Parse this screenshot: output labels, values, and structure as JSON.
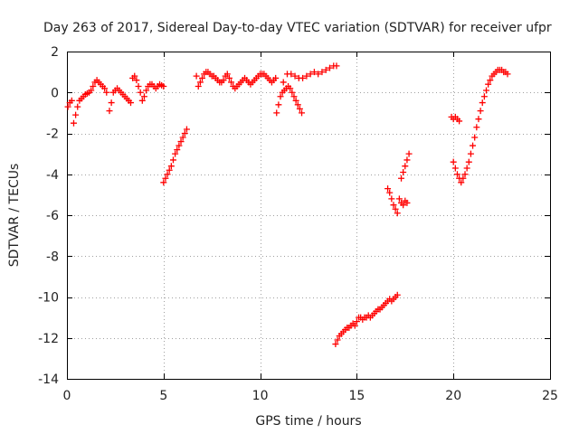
{
  "chart_data": {
    "type": "scatter",
    "title": "Day 263 of 2017, Sidereal Day-to-day VTEC variation (SDTVAR) for receiver ufpr",
    "xlabel": "GPS time / hours",
    "ylabel": "SDTVAR / TECUs",
    "xlim": [
      0,
      25
    ],
    "ylim": [
      -14,
      2
    ],
    "xticks": [
      0,
      5,
      10,
      15,
      20,
      25
    ],
    "yticks": [
      -14,
      -12,
      -10,
      -8,
      -6,
      -4,
      -2,
      0,
      2
    ],
    "grid": true,
    "marker": "+",
    "color": "#ff0000",
    "series": [
      {
        "values": [
          [
            0.05,
            -0.7
          ],
          [
            0.15,
            -0.5
          ],
          [
            0.25,
            -0.4
          ],
          [
            0.35,
            -1.5
          ],
          [
            0.45,
            -1.1
          ],
          [
            0.55,
            -0.7
          ],
          [
            0.65,
            -0.4
          ],
          [
            0.75,
            -0.3
          ],
          [
            0.85,
            -0.2
          ],
          [
            0.95,
            -0.1
          ],
          [
            1.05,
            -0.05
          ],
          [
            1.15,
            0.0
          ],
          [
            1.25,
            0.1
          ],
          [
            1.35,
            0.3
          ],
          [
            1.45,
            0.5
          ],
          [
            1.55,
            0.6
          ],
          [
            1.65,
            0.5
          ],
          [
            1.75,
            0.4
          ],
          [
            1.85,
            0.3
          ],
          [
            1.95,
            0.2
          ],
          [
            2.05,
            0.0
          ],
          [
            2.2,
            -0.9
          ],
          [
            2.3,
            -0.5
          ],
          [
            2.4,
            0.0
          ],
          [
            2.5,
            0.1
          ],
          [
            2.6,
            0.2
          ],
          [
            2.7,
            0.1
          ],
          [
            2.8,
            0.0
          ],
          [
            2.9,
            -0.1
          ],
          [
            3.0,
            -0.2
          ],
          [
            3.1,
            -0.3
          ],
          [
            3.2,
            -0.4
          ],
          [
            3.3,
            -0.5
          ],
          [
            3.4,
            0.7
          ],
          [
            3.5,
            0.8
          ],
          [
            3.6,
            0.6
          ],
          [
            3.7,
            0.3
          ],
          [
            3.8,
            0.0
          ],
          [
            3.9,
            -0.4
          ],
          [
            4.0,
            -0.2
          ],
          [
            4.1,
            0.1
          ],
          [
            4.2,
            0.3
          ],
          [
            4.3,
            0.4
          ],
          [
            4.4,
            0.4
          ],
          [
            4.5,
            0.3
          ],
          [
            4.6,
            0.2
          ],
          [
            4.7,
            0.3
          ],
          [
            4.8,
            0.4
          ],
          [
            4.9,
            0.35
          ],
          [
            5.0,
            0.3
          ]
        ]
      },
      {
        "values": [
          [
            5.0,
            -4.4
          ],
          [
            5.1,
            -4.2
          ],
          [
            5.2,
            -4.0
          ],
          [
            5.3,
            -3.8
          ],
          [
            5.4,
            -3.6
          ],
          [
            5.5,
            -3.3
          ],
          [
            5.6,
            -3.0
          ],
          [
            5.7,
            -2.8
          ],
          [
            5.8,
            -2.6
          ],
          [
            5.9,
            -2.4
          ],
          [
            6.0,
            -2.2
          ],
          [
            6.1,
            -2.0
          ],
          [
            6.2,
            -1.8
          ]
        ]
      },
      {
        "values": [
          [
            6.7,
            0.8
          ],
          [
            6.8,
            0.3
          ],
          [
            6.9,
            0.5
          ],
          [
            7.0,
            0.7
          ],
          [
            7.1,
            0.9
          ],
          [
            7.2,
            1.0
          ],
          [
            7.3,
            1.0
          ],
          [
            7.4,
            0.9
          ],
          [
            7.5,
            0.8
          ],
          [
            7.6,
            0.8
          ],
          [
            7.7,
            0.7
          ],
          [
            7.8,
            0.6
          ],
          [
            7.9,
            0.5
          ],
          [
            8.0,
            0.5
          ],
          [
            8.1,
            0.6
          ],
          [
            8.2,
            0.8
          ],
          [
            8.3,
            0.9
          ],
          [
            8.4,
            0.7
          ],
          [
            8.5,
            0.5
          ],
          [
            8.6,
            0.3
          ],
          [
            8.7,
            0.2
          ],
          [
            8.8,
            0.3
          ],
          [
            8.9,
            0.4
          ],
          [
            9.0,
            0.5
          ],
          [
            9.1,
            0.6
          ],
          [
            9.2,
            0.7
          ],
          [
            9.3,
            0.6
          ],
          [
            9.4,
            0.5
          ],
          [
            9.5,
            0.4
          ],
          [
            9.6,
            0.5
          ],
          [
            9.7,
            0.6
          ],
          [
            9.8,
            0.7
          ],
          [
            9.9,
            0.8
          ],
          [
            10.0,
            0.9
          ],
          [
            10.1,
            0.9
          ],
          [
            10.2,
            0.9
          ],
          [
            10.3,
            0.8
          ],
          [
            10.4,
            0.7
          ],
          [
            10.5,
            0.6
          ],
          [
            10.6,
            0.5
          ],
          [
            10.7,
            0.6
          ],
          [
            10.8,
            0.7
          ],
          [
            10.85,
            -1.0
          ],
          [
            10.95,
            -0.6
          ],
          [
            11.05,
            -0.2
          ],
          [
            11.15,
            0.0
          ],
          [
            11.25,
            0.1
          ],
          [
            11.35,
            0.2
          ],
          [
            11.45,
            0.3
          ],
          [
            11.55,
            0.2
          ],
          [
            11.65,
            0.0
          ],
          [
            11.75,
            -0.2
          ],
          [
            11.85,
            -0.4
          ],
          [
            11.95,
            -0.6
          ],
          [
            12.05,
            -0.8
          ],
          [
            12.15,
            -1.0
          ],
          [
            11.2,
            0.5
          ],
          [
            11.4,
            0.9
          ],
          [
            11.6,
            0.9
          ],
          [
            11.8,
            0.8
          ],
          [
            12.0,
            0.7
          ],
          [
            12.2,
            0.7
          ],
          [
            12.4,
            0.8
          ],
          [
            12.6,
            0.9
          ],
          [
            12.8,
            1.0
          ],
          [
            13.0,
            0.9
          ],
          [
            13.2,
            1.0
          ],
          [
            13.4,
            1.1
          ],
          [
            13.6,
            1.2
          ],
          [
            13.8,
            1.3
          ],
          [
            13.95,
            1.3
          ]
        ]
      },
      {
        "values": [
          [
            13.9,
            -12.3
          ],
          [
            14.0,
            -12.1
          ],
          [
            14.1,
            -11.9
          ],
          [
            14.2,
            -11.8
          ],
          [
            14.3,
            -11.7
          ],
          [
            14.4,
            -11.6
          ],
          [
            14.5,
            -11.5
          ],
          [
            14.6,
            -11.5
          ],
          [
            14.7,
            -11.4
          ],
          [
            14.8,
            -11.3
          ],
          [
            14.9,
            -11.4
          ],
          [
            15.0,
            -11.2
          ],
          [
            15.1,
            -11.0
          ],
          [
            15.2,
            -11.0
          ],
          [
            15.3,
            -11.1
          ],
          [
            15.4,
            -11.0
          ],
          [
            15.5,
            -11.0
          ],
          [
            15.6,
            -10.9
          ],
          [
            15.7,
            -11.0
          ],
          [
            15.8,
            -10.9
          ],
          [
            15.9,
            -10.8
          ],
          [
            16.0,
            -10.7
          ],
          [
            16.1,
            -10.6
          ],
          [
            16.2,
            -10.6
          ],
          [
            16.3,
            -10.5
          ],
          [
            16.4,
            -10.4
          ],
          [
            16.5,
            -10.3
          ],
          [
            16.6,
            -10.2
          ],
          [
            16.7,
            -10.1
          ],
          [
            16.8,
            -10.2
          ],
          [
            16.9,
            -10.1
          ],
          [
            17.0,
            -10.0
          ],
          [
            17.1,
            -9.9
          ]
        ]
      },
      {
        "values": [
          [
            16.6,
            -4.7
          ],
          [
            16.7,
            -4.9
          ],
          [
            16.8,
            -5.2
          ],
          [
            16.9,
            -5.5
          ],
          [
            17.0,
            -5.7
          ],
          [
            17.1,
            -5.9
          ],
          [
            17.2,
            -5.2
          ],
          [
            17.3,
            -5.4
          ],
          [
            17.4,
            -5.5
          ],
          [
            17.5,
            -5.3
          ],
          [
            17.6,
            -5.4
          ],
          [
            17.3,
            -4.2
          ],
          [
            17.4,
            -3.9
          ],
          [
            17.5,
            -3.6
          ],
          [
            17.6,
            -3.3
          ],
          [
            17.7,
            -3.0
          ]
        ]
      },
      {
        "values": [
          [
            19.9,
            -1.2
          ],
          [
            20.0,
            -1.3
          ],
          [
            20.1,
            -1.2
          ],
          [
            20.2,
            -1.3
          ],
          [
            20.3,
            -1.4
          ],
          [
            20.0,
            -3.4
          ],
          [
            20.1,
            -3.7
          ],
          [
            20.2,
            -4.0
          ],
          [
            20.3,
            -4.2
          ],
          [
            20.4,
            -4.4
          ],
          [
            20.5,
            -4.2
          ],
          [
            20.6,
            -4.0
          ],
          [
            20.7,
            -3.7
          ],
          [
            20.8,
            -3.4
          ],
          [
            20.9,
            -3.0
          ],
          [
            21.0,
            -2.6
          ],
          [
            21.1,
            -2.2
          ],
          [
            21.2,
            -1.7
          ],
          [
            21.3,
            -1.3
          ],
          [
            21.4,
            -0.9
          ],
          [
            21.5,
            -0.5
          ],
          [
            21.6,
            -0.2
          ],
          [
            21.7,
            0.1
          ],
          [
            21.8,
            0.4
          ],
          [
            21.9,
            0.6
          ],
          [
            22.0,
            0.8
          ],
          [
            22.1,
            0.9
          ],
          [
            22.2,
            1.0
          ],
          [
            22.3,
            1.1
          ],
          [
            22.4,
            1.1
          ],
          [
            22.5,
            1.1
          ],
          [
            22.6,
            1.0
          ],
          [
            22.7,
            1.0
          ],
          [
            22.8,
            0.9
          ]
        ]
      }
    ]
  }
}
